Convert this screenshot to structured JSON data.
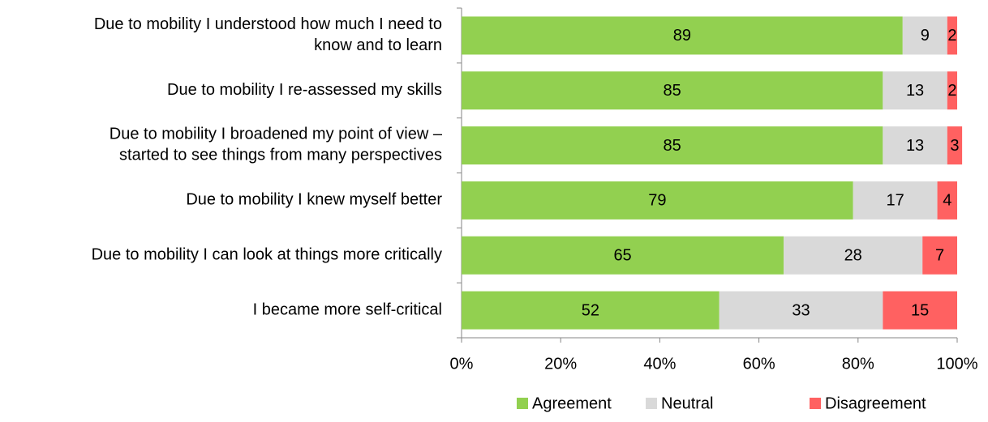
{
  "chart_data": {
    "type": "stacked_barh",
    "categories": [
      "Due to mobility I understood how much I need to\nknow and to learn",
      "Due to mobility I re-assessed my skills",
      "Due to mobility I broadened my point of view –\nstarted to see things from many perspectives",
      "Due to mobility I knew myself better",
      "Due to mobility I can look at things more critically",
      "I became more self-critical"
    ],
    "series": [
      {
        "name": "Agreement",
        "color": "#92d050",
        "values": [
          89,
          85,
          85,
          79,
          65,
          52
        ]
      },
      {
        "name": "Neutral",
        "color": "#d9d9d9",
        "values": [
          9,
          13,
          13,
          17,
          28,
          33
        ]
      },
      {
        "name": "Disagreement",
        "color": "#ff6161",
        "values": [
          2,
          2,
          3,
          4,
          7,
          15
        ]
      }
    ],
    "xlim": [
      0,
      100
    ],
    "xticks": [
      {
        "value": 0,
        "label": "0%"
      },
      {
        "value": 20,
        "label": "20%"
      },
      {
        "value": 40,
        "label": "40%"
      },
      {
        "value": 60,
        "label": "60%"
      },
      {
        "value": 80,
        "label": "80%"
      },
      {
        "value": 100,
        "label": "100%"
      }
    ],
    "legend": "bottom"
  }
}
